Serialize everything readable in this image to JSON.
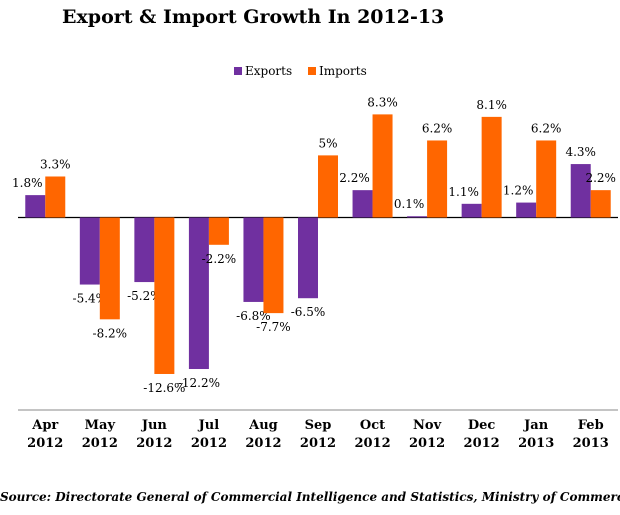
{
  "chart_data": {
    "type": "bar",
    "title": "Export & Import Growth In 2012-13",
    "categories": [
      [
        "Apr",
        "2012"
      ],
      [
        "May",
        "2012"
      ],
      [
        "Jun",
        "2012"
      ],
      [
        "Jul",
        "2012"
      ],
      [
        "Aug",
        "2012"
      ],
      [
        "Sep",
        "2012"
      ],
      [
        "Oct",
        "2012"
      ],
      [
        "Nov",
        "2012"
      ],
      [
        "Dec",
        "2012"
      ],
      [
        "Jan",
        "2013"
      ],
      [
        "Feb",
        "2013"
      ]
    ],
    "series": [
      {
        "name": "Exports",
        "color": "#7030A0",
        "values": [
          1.8,
          -5.4,
          -5.2,
          -12.2,
          -6.8,
          -6.5,
          2.2,
          0.1,
          1.1,
          1.2,
          4.3
        ],
        "labels": [
          "1.8%",
          "-5.4%",
          "-5.2%",
          "-12.2%",
          "-6.8%",
          "-6.5%",
          "2.2%",
          "0.1%",
          "1.1%",
          "1.2%",
          "4.3%"
        ]
      },
      {
        "name": "Imports",
        "color": "#FF6600",
        "values": [
          3.3,
          -8.2,
          -12.6,
          -2.2,
          -7.7,
          5,
          8.3,
          6.2,
          8.1,
          6.2,
          2.2
        ],
        "labels": [
          "3.3%",
          "-8.2%",
          "-12.6%",
          "-2.2%",
          "-7.7%",
          "5%",
          "8.3%",
          "6.2%",
          "8.1%",
          "6.2%",
          "2.2%"
        ]
      }
    ],
    "ylim": [
      -15.5,
      9.7
    ],
    "grid": false,
    "legend_position": "top-center",
    "source": "Source: Directorate General of Commercial Intelligence and Statistics, Ministry of Commerce"
  }
}
